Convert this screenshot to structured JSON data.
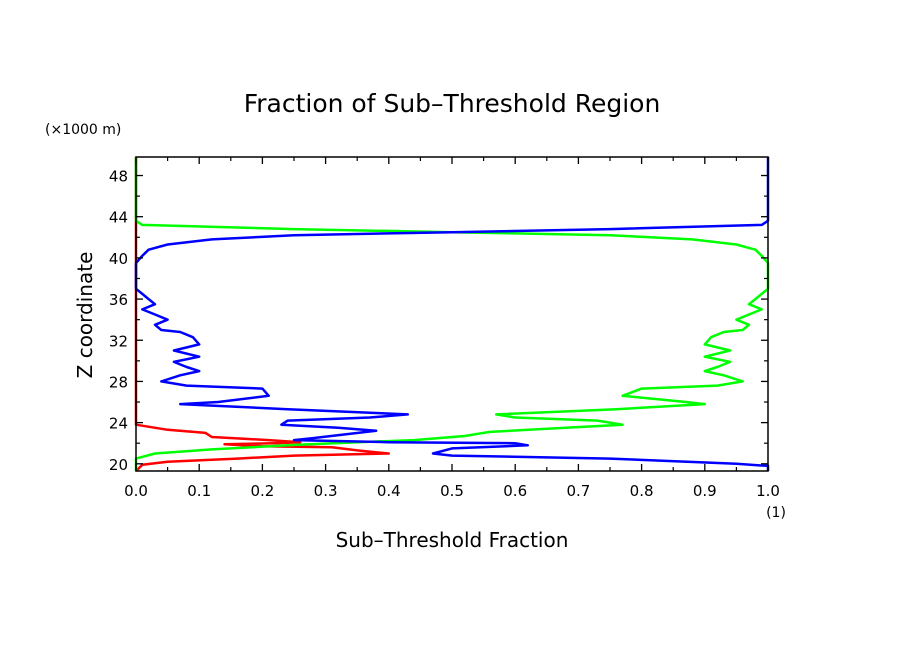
{
  "chart_data": {
    "type": "line",
    "title": "Fraction of Sub–Threshold Region",
    "xlabel": "Sub–Threshold Fraction",
    "ylabel": "Z coordinate",
    "x_unit": "(1)",
    "y_unit": "(×1000 m)",
    "xlim": [
      0.0,
      1.0
    ],
    "ylim": [
      19.3,
      49.8
    ],
    "x_ticks": [
      "0.0",
      "0.1",
      "0.2",
      "0.3",
      "0.4",
      "0.5",
      "0.6",
      "0.7",
      "0.8",
      "0.9",
      "1.0"
    ],
    "y_ticks": [
      "20",
      "24",
      "28",
      "32",
      "36",
      "40",
      "44",
      "48"
    ],
    "grid": false,
    "series": [
      {
        "color": "#ff0000",
        "points": [
          [
            0.0,
            49.8
          ],
          [
            0.0,
            43.0
          ],
          [
            0.0,
            23.8
          ],
          [
            0.05,
            23.3
          ],
          [
            0.11,
            23.0
          ],
          [
            0.12,
            22.6
          ],
          [
            0.21,
            22.3
          ],
          [
            0.26,
            22.1
          ],
          [
            0.22,
            22.0
          ],
          [
            0.14,
            21.9
          ],
          [
            0.2,
            21.7
          ],
          [
            0.31,
            21.6
          ],
          [
            0.35,
            21.3
          ],
          [
            0.4,
            21.0
          ],
          [
            0.25,
            20.8
          ],
          [
            0.16,
            20.5
          ],
          [
            0.05,
            20.2
          ],
          [
            0.01,
            19.9
          ],
          [
            0.0,
            19.3
          ]
        ]
      },
      {
        "color": "#00ff00",
        "points": [
          [
            0.0,
            49.8
          ],
          [
            0.0,
            43.6
          ],
          [
            0.01,
            43.2
          ],
          [
            0.25,
            42.8
          ],
          [
            0.5,
            42.5
          ],
          [
            0.75,
            42.2
          ],
          [
            0.88,
            41.8
          ],
          [
            0.95,
            41.3
          ],
          [
            0.98,
            40.8
          ],
          [
            0.99,
            40.2
          ],
          [
            1.0,
            39.5
          ],
          [
            1.0,
            37.0
          ],
          [
            0.99,
            36.5
          ],
          [
            0.98,
            36.0
          ],
          [
            0.97,
            35.5
          ],
          [
            0.99,
            35.0
          ],
          [
            0.97,
            34.5
          ],
          [
            0.95,
            34.0
          ],
          [
            0.97,
            33.5
          ],
          [
            0.96,
            33.0
          ],
          [
            0.93,
            32.8
          ],
          [
            0.91,
            32.3
          ],
          [
            0.9,
            31.6
          ],
          [
            0.94,
            31.0
          ],
          [
            0.9,
            30.4
          ],
          [
            0.94,
            29.9
          ],
          [
            0.92,
            29.4
          ],
          [
            0.9,
            29.0
          ],
          [
            0.93,
            28.6
          ],
          [
            0.96,
            28.0
          ],
          [
            0.92,
            27.6
          ],
          [
            0.8,
            27.3
          ],
          [
            0.77,
            26.6
          ],
          [
            0.87,
            26.0
          ],
          [
            0.9,
            25.8
          ],
          [
            0.76,
            25.3
          ],
          [
            0.57,
            24.8
          ],
          [
            0.6,
            24.5
          ],
          [
            0.73,
            24.2
          ],
          [
            0.77,
            23.8
          ],
          [
            0.68,
            23.5
          ],
          [
            0.56,
            23.1
          ],
          [
            0.52,
            22.7
          ],
          [
            0.44,
            22.3
          ],
          [
            0.35,
            22.1
          ],
          [
            0.24,
            21.8
          ],
          [
            0.12,
            21.4
          ],
          [
            0.03,
            21.0
          ],
          [
            0.0,
            20.5
          ],
          [
            0.0,
            20.0
          ],
          [
            0.0,
            19.3
          ]
        ]
      },
      {
        "color": "#0000ff",
        "points": [
          [
            1.0,
            49.8
          ],
          [
            1.0,
            43.6
          ],
          [
            0.99,
            43.2
          ],
          [
            0.75,
            42.8
          ],
          [
            0.5,
            42.5
          ],
          [
            0.25,
            42.2
          ],
          [
            0.12,
            41.8
          ],
          [
            0.05,
            41.3
          ],
          [
            0.02,
            40.8
          ],
          [
            0.01,
            40.2
          ],
          [
            0.0,
            39.5
          ],
          [
            0.0,
            37.0
          ],
          [
            0.01,
            36.5
          ],
          [
            0.02,
            36.0
          ],
          [
            0.03,
            35.5
          ],
          [
            0.01,
            35.0
          ],
          [
            0.03,
            34.5
          ],
          [
            0.05,
            34.0
          ],
          [
            0.03,
            33.5
          ],
          [
            0.04,
            33.0
          ],
          [
            0.07,
            32.8
          ],
          [
            0.09,
            32.3
          ],
          [
            0.1,
            31.6
          ],
          [
            0.06,
            31.0
          ],
          [
            0.1,
            30.4
          ],
          [
            0.06,
            29.9
          ],
          [
            0.08,
            29.4
          ],
          [
            0.1,
            29.0
          ],
          [
            0.07,
            28.6
          ],
          [
            0.04,
            28.0
          ],
          [
            0.08,
            27.6
          ],
          [
            0.2,
            27.3
          ],
          [
            0.21,
            26.6
          ],
          [
            0.13,
            26.0
          ],
          [
            0.07,
            25.8
          ],
          [
            0.24,
            25.3
          ],
          [
            0.43,
            24.8
          ],
          [
            0.37,
            24.5
          ],
          [
            0.24,
            24.2
          ],
          [
            0.23,
            23.8
          ],
          [
            0.32,
            23.5
          ],
          [
            0.38,
            23.2
          ],
          [
            0.28,
            22.5
          ],
          [
            0.25,
            22.3
          ],
          [
            0.4,
            22.1
          ],
          [
            0.6,
            22.0
          ],
          [
            0.62,
            21.8
          ],
          [
            0.5,
            21.5
          ],
          [
            0.47,
            21.0
          ],
          [
            0.5,
            20.8
          ],
          [
            0.75,
            20.5
          ],
          [
            0.95,
            20.0
          ],
          [
            1.0,
            19.8
          ],
          [
            1.0,
            19.3
          ]
        ]
      }
    ]
  }
}
